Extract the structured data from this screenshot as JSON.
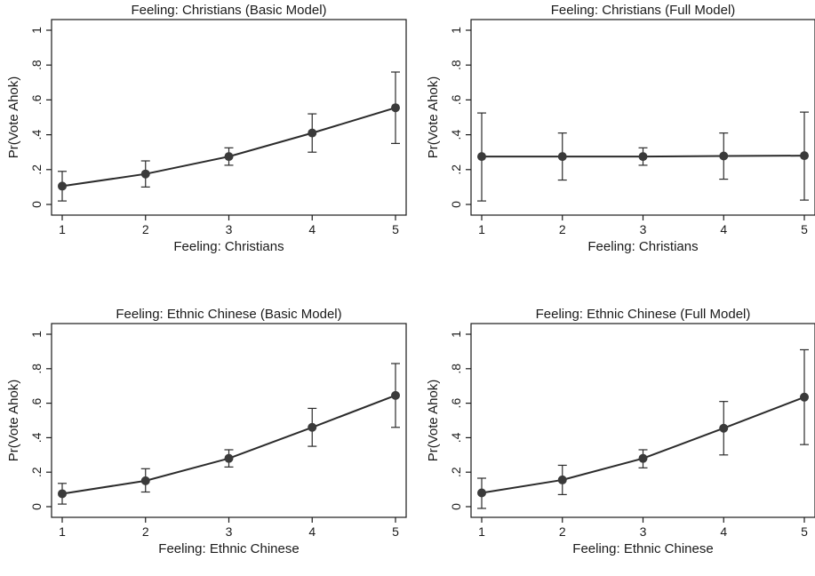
{
  "chart_data": [
    {
      "type": "line",
      "title": "Feeling: Christians (Basic Model)",
      "xlabel": "Feeling: Christians",
      "ylabel": "Pr(Vote Ahok)",
      "x": [
        1,
        2,
        3,
        4,
        5
      ],
      "y_tick_labels": [
        "0",
        ".2",
        ".4",
        ".6",
        ".8",
        "1"
      ],
      "x_tick_labels": [
        "1",
        "2",
        "3",
        "4",
        "5"
      ],
      "ylim": [
        0,
        1
      ],
      "xlim": [
        1,
        5
      ],
      "grid": false,
      "series": [
        {
          "values": [
            0.105,
            0.175,
            0.275,
            0.41,
            0.555
          ],
          "lower": [
            0.02,
            0.1,
            0.225,
            0.3,
            0.35
          ],
          "upper": [
            0.19,
            0.25,
            0.325,
            0.52,
            0.76
          ]
        }
      ]
    },
    {
      "type": "line",
      "title": "Feeling: Christians (Full Model)",
      "xlabel": "Feeling: Christians",
      "ylabel": "Pr(Vote Ahok)",
      "x": [
        1,
        2,
        3,
        4,
        5
      ],
      "y_tick_labels": [
        "0",
        ".2",
        ".4",
        ".6",
        ".8",
        "1"
      ],
      "x_tick_labels": [
        "1",
        "2",
        "3",
        "4",
        "5"
      ],
      "ylim": [
        0,
        1
      ],
      "xlim": [
        1,
        5
      ],
      "grid": false,
      "series": [
        {
          "values": [
            0.275,
            0.275,
            0.275,
            0.278,
            0.28
          ],
          "lower": [
            0.02,
            0.14,
            0.225,
            0.145,
            0.025
          ],
          "upper": [
            0.525,
            0.41,
            0.325,
            0.41,
            0.53
          ]
        }
      ]
    },
    {
      "type": "line",
      "title": "Feeling: Ethnic Chinese (Basic Model)",
      "xlabel": "Feeling: Ethnic Chinese",
      "ylabel": "Pr(Vote Ahok)",
      "x": [
        1,
        2,
        3,
        4,
        5
      ],
      "y_tick_labels": [
        "0",
        ".2",
        ".4",
        ".6",
        ".8",
        "1"
      ],
      "x_tick_labels": [
        "1",
        "2",
        "3",
        "4",
        "5"
      ],
      "ylim": [
        0,
        1
      ],
      "xlim": [
        1,
        5
      ],
      "grid": false,
      "series": [
        {
          "values": [
            0.075,
            0.15,
            0.28,
            0.46,
            0.645
          ],
          "lower": [
            0.015,
            0.085,
            0.23,
            0.35,
            0.46
          ],
          "upper": [
            0.135,
            0.22,
            0.33,
            0.57,
            0.83
          ]
        }
      ]
    },
    {
      "type": "line",
      "title": "Feeling: Ethnic Chinese (Full Model)",
      "xlabel": "Feeling: Ethnic Chinese",
      "ylabel": "Pr(Vote Ahok)",
      "x": [
        1,
        2,
        3,
        4,
        5
      ],
      "y_tick_labels": [
        "0",
        ".2",
        ".4",
        ".6",
        ".8",
        "1"
      ],
      "x_tick_labels": [
        "1",
        "2",
        "3",
        "4",
        "5"
      ],
      "ylim": [
        0,
        1
      ],
      "xlim": [
        1,
        5
      ],
      "grid": false,
      "series": [
        {
          "values": [
            0.08,
            0.155,
            0.28,
            0.455,
            0.635
          ],
          "lower": [
            -0.01,
            0.07,
            0.225,
            0.3,
            0.36
          ],
          "upper": [
            0.165,
            0.24,
            0.33,
            0.61,
            0.91
          ]
        }
      ]
    }
  ],
  "colors": {
    "line": "#2b2b2b",
    "marker": "#3a3a3a",
    "axis": "#1a1a1a",
    "background": "#ffffff"
  }
}
